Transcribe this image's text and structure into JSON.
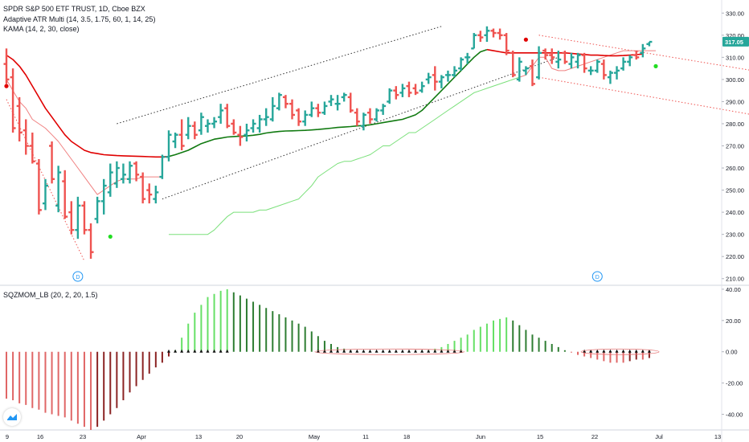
{
  "legend": {
    "title": "SPDR S&P 500 ETF TRUST, 1D, Cboe BZX",
    "ind1": "Adaptive ATR Multi (14, 3.5, 1.75, 60, 1, 14, 25)",
    "ind2": "KAMA (14, 2, 30, close)",
    "ind3": "SQZMOM_LB (20, 2, 20, 1.5)"
  },
  "price_badge": "317.05",
  "colors": {
    "up": "#26a69a",
    "down": "#ef5350",
    "kama_red": "#e00000",
    "kama_green": "#117a11",
    "trail_red": "#f08080",
    "trail_green": "#7be07b",
    "channel": "#333333",
    "mom_lime": "#66e066",
    "mom_green": "#2e7d32",
    "mom_red": "#e06666",
    "mom_maroon": "#8b2323"
  },
  "chart_data": [
    {
      "type": "candlestick",
      "title": "SPDR S&P 500 ETF TRUST, 1D, Cboe BZX",
      "x_ticks": [
        "9",
        "16",
        "23",
        "Apr",
        "13",
        "20",
        "May",
        "11",
        "18",
        "Jun",
        "15",
        "22",
        "Jul",
        "13"
      ],
      "y_ticks": [
        "330.00",
        "320.00",
        "310.00",
        "300.00",
        "290.00",
        "280.00",
        "270.00",
        "260.00",
        "250.00",
        "240.00",
        "230.00",
        "220.00",
        "210.00"
      ],
      "ylim": [
        207,
        333
      ],
      "last_price": 317.05,
      "markers": [
        "D",
        "D"
      ],
      "bars": [
        {
          "o": 307,
          "h": 314,
          "l": 298,
          "c": 300
        },
        {
          "o": 301,
          "h": 305,
          "l": 276,
          "c": 278
        },
        {
          "o": 288,
          "h": 292,
          "l": 272,
          "c": 276
        },
        {
          "o": 277,
          "h": 282,
          "l": 266,
          "c": 270
        },
        {
          "o": 270,
          "h": 276,
          "l": 262,
          "c": 263
        },
        {
          "o": 262,
          "h": 264,
          "l": 239,
          "c": 241
        },
        {
          "o": 244,
          "h": 255,
          "l": 241,
          "c": 252
        },
        {
          "o": 270,
          "h": 272,
          "l": 253,
          "c": 255
        },
        {
          "o": 243,
          "h": 261,
          "l": 240,
          "c": 258
        },
        {
          "o": 254,
          "h": 259,
          "l": 237,
          "c": 238
        },
        {
          "o": 240,
          "h": 245,
          "l": 230,
          "c": 232
        },
        {
          "o": 232,
          "h": 247,
          "l": 228,
          "c": 243
        },
        {
          "o": 243,
          "h": 245,
          "l": 230,
          "c": 232
        },
        {
          "o": 232,
          "h": 235,
          "l": 219,
          "c": 222
        },
        {
          "o": 237,
          "h": 247,
          "l": 235,
          "c": 245
        },
        {
          "o": 245,
          "h": 255,
          "l": 239,
          "c": 252
        },
        {
          "o": 249,
          "h": 262,
          "l": 247,
          "c": 258
        },
        {
          "o": 253,
          "h": 263,
          "l": 251,
          "c": 260
        },
        {
          "o": 255,
          "h": 262,
          "l": 253,
          "c": 257
        },
        {
          "o": 255,
          "h": 263,
          "l": 253,
          "c": 261
        },
        {
          "o": 262,
          "h": 263,
          "l": 254,
          "c": 257
        },
        {
          "o": 256,
          "h": 258,
          "l": 244,
          "c": 246
        },
        {
          "o": 250,
          "h": 253,
          "l": 244,
          "c": 248
        },
        {
          "o": 246,
          "h": 252,
          "l": 244,
          "c": 249
        },
        {
          "o": 256,
          "h": 266,
          "l": 255,
          "c": 265
        },
        {
          "o": 265,
          "h": 277,
          "l": 263,
          "c": 275
        },
        {
          "o": 272,
          "h": 276,
          "l": 269,
          "c": 275
        },
        {
          "o": 275,
          "h": 282,
          "l": 268,
          "c": 270
        },
        {
          "o": 275,
          "h": 283,
          "l": 273,
          "c": 279
        },
        {
          "o": 279,
          "h": 281,
          "l": 273,
          "c": 275
        },
        {
          "o": 277,
          "h": 285,
          "l": 275,
          "c": 283
        },
        {
          "o": 279,
          "h": 282,
          "l": 276,
          "c": 280
        },
        {
          "o": 280,
          "h": 283,
          "l": 278,
          "c": 281
        },
        {
          "o": 283,
          "h": 289,
          "l": 280,
          "c": 286
        },
        {
          "o": 287,
          "h": 289,
          "l": 278,
          "c": 279
        },
        {
          "o": 280,
          "h": 282,
          "l": 275,
          "c": 276
        },
        {
          "o": 275,
          "h": 279,
          "l": 270,
          "c": 274
        },
        {
          "o": 275,
          "h": 280,
          "l": 272,
          "c": 277
        },
        {
          "o": 278,
          "h": 282,
          "l": 276,
          "c": 280
        },
        {
          "o": 278,
          "h": 284,
          "l": 276,
          "c": 282
        },
        {
          "o": 282,
          "h": 287,
          "l": 279,
          "c": 283
        },
        {
          "o": 282,
          "h": 292,
          "l": 281,
          "c": 288
        },
        {
          "o": 287,
          "h": 294,
          "l": 286,
          "c": 293
        },
        {
          "o": 292,
          "h": 293,
          "l": 287,
          "c": 289
        },
        {
          "o": 289,
          "h": 291,
          "l": 282,
          "c": 284
        },
        {
          "o": 286,
          "h": 287,
          "l": 279,
          "c": 281
        },
        {
          "o": 281,
          "h": 286,
          "l": 279,
          "c": 284
        },
        {
          "o": 284,
          "h": 290,
          "l": 283,
          "c": 287
        },
        {
          "o": 287,
          "h": 289,
          "l": 283,
          "c": 285
        },
        {
          "o": 285,
          "h": 290,
          "l": 284,
          "c": 288
        },
        {
          "o": 290,
          "h": 293,
          "l": 288,
          "c": 291
        },
        {
          "o": 289,
          "h": 293,
          "l": 286,
          "c": 289
        },
        {
          "o": 292,
          "h": 294,
          "l": 290,
          "c": 293
        },
        {
          "o": 292,
          "h": 294,
          "l": 285,
          "c": 286
        },
        {
          "o": 285,
          "h": 287,
          "l": 279,
          "c": 281
        },
        {
          "o": 279,
          "h": 285,
          "l": 277,
          "c": 284
        },
        {
          "o": 285,
          "h": 287,
          "l": 280,
          "c": 282
        },
        {
          "o": 282,
          "h": 287,
          "l": 281,
          "c": 286
        },
        {
          "o": 286,
          "h": 289,
          "l": 284,
          "c": 288
        },
        {
          "o": 290,
          "h": 296,
          "l": 289,
          "c": 295
        },
        {
          "o": 295,
          "h": 297,
          "l": 291,
          "c": 293
        },
        {
          "o": 294,
          "h": 298,
          "l": 292,
          "c": 296
        },
        {
          "o": 297,
          "h": 299,
          "l": 292,
          "c": 294
        },
        {
          "o": 296,
          "h": 298,
          "l": 293,
          "c": 294
        },
        {
          "o": 295,
          "h": 299,
          "l": 294,
          "c": 297
        },
        {
          "o": 300,
          "h": 303,
          "l": 298,
          "c": 301
        },
        {
          "o": 302,
          "h": 306,
          "l": 295,
          "c": 299
        },
        {
          "o": 299,
          "h": 302,
          "l": 296,
          "c": 301
        },
        {
          "o": 302,
          "h": 304,
          "l": 299,
          "c": 302
        },
        {
          "o": 302,
          "h": 306,
          "l": 301,
          "c": 304
        },
        {
          "o": 305,
          "h": 310,
          "l": 304,
          "c": 309
        },
        {
          "o": 310,
          "h": 312,
          "l": 307,
          "c": 310
        },
        {
          "o": 314,
          "h": 321,
          "l": 314,
          "c": 320
        },
        {
          "o": 320,
          "h": 322,
          "l": 317,
          "c": 319
        },
        {
          "o": 320,
          "h": 324,
          "l": 317,
          "c": 322
        },
        {
          "o": 322,
          "h": 323,
          "l": 319,
          "c": 321
        },
        {
          "o": 321,
          "h": 323,
          "l": 318,
          "c": 320
        },
        {
          "o": 320,
          "h": 321,
          "l": 311,
          "c": 313
        },
        {
          "o": 312,
          "h": 313,
          "l": 301,
          "c": 302
        },
        {
          "o": 300,
          "h": 310,
          "l": 299,
          "c": 308
        },
        {
          "o": 304,
          "h": 306,
          "l": 302,
          "c": 305
        },
        {
          "o": 306,
          "h": 309,
          "l": 297,
          "c": 298
        },
        {
          "o": 301,
          "h": 315,
          "l": 300,
          "c": 312
        },
        {
          "o": 313,
          "h": 314,
          "l": 309,
          "c": 311
        },
        {
          "o": 311,
          "h": 314,
          "l": 307,
          "c": 310
        },
        {
          "o": 308,
          "h": 313,
          "l": 305,
          "c": 309
        },
        {
          "o": 312,
          "h": 313,
          "l": 307,
          "c": 308
        },
        {
          "o": 307,
          "h": 312,
          "l": 305,
          "c": 310
        },
        {
          "o": 308,
          "h": 312,
          "l": 305,
          "c": 311
        },
        {
          "o": 311,
          "h": 312,
          "l": 303,
          "c": 305
        },
        {
          "o": 304,
          "h": 306,
          "l": 302,
          "c": 304
        },
        {
          "o": 304,
          "h": 309,
          "l": 303,
          "c": 308
        },
        {
          "o": 307,
          "h": 309,
          "l": 300,
          "c": 302
        },
        {
          "o": 301,
          "h": 304,
          "l": 298,
          "c": 303
        },
        {
          "o": 303,
          "h": 306,
          "l": 300,
          "c": 304
        },
        {
          "o": 305,
          "h": 310,
          "l": 304,
          "c": 308
        },
        {
          "o": 308,
          "h": 311,
          "l": 306,
          "c": 310
        },
        {
          "o": 311,
          "h": 313,
          "l": 309,
          "c": 310
        },
        {
          "o": 312,
          "h": 316,
          "l": 310,
          "c": 314
        },
        {
          "o": 316,
          "h": 317,
          "l": 315,
          "c": 317
        }
      ],
      "kama": [
        311,
        309,
        306,
        302,
        297,
        292,
        287,
        283,
        279,
        275,
        272,
        270,
        268,
        267,
        266.5,
        266,
        265.8,
        265.6,
        265.5,
        265.4,
        265.3,
        265.2,
        265.1,
        265.0,
        265.0,
        265.2,
        266.0,
        267.0,
        268.0,
        269.5,
        271,
        272,
        273,
        273.5,
        274,
        274.2,
        274.4,
        274.5,
        274.8,
        275.2,
        275.8,
        276.2,
        276.5,
        276.7,
        276.8,
        276.9,
        277.0,
        277.2,
        277.4,
        277.7,
        278.0,
        278.3,
        278.5,
        278.7,
        279.0,
        279.2,
        279.5,
        280.0,
        280.5,
        281.0,
        281.5,
        282.0,
        283.0,
        284.0,
        286.0,
        289.0,
        292.0,
        295.0,
        298.0,
        301.0,
        304.0,
        307.0,
        310.0,
        312.5,
        313.5,
        313.0,
        312.5,
        312.0,
        312.0,
        312.0,
        312.0,
        312.0,
        312.0,
        312.0,
        312.0,
        312.0,
        312.0,
        311.8,
        311.5,
        311.3,
        311.0,
        311.0,
        310.8,
        310.7,
        310.7,
        310.8,
        311.0,
        311.2,
        311.5
      ],
      "kama_color_switch_index": 25,
      "trail": [
        300,
        295,
        290,
        287,
        282,
        280,
        278,
        275,
        272,
        268,
        264,
        260,
        256,
        252,
        248,
        250,
        252,
        254,
        255,
        255,
        255,
        256,
        256,
        256,
        256,
        230,
        230,
        230,
        230,
        230,
        230,
        230,
        232,
        235,
        238,
        240,
        240,
        240,
        240,
        241,
        241,
        242,
        243,
        244,
        245,
        246,
        249,
        252,
        256,
        258,
        260,
        262,
        263,
        263,
        264,
        265,
        266,
        268,
        270,
        270,
        272,
        274,
        276,
        276,
        278,
        280,
        282,
        284,
        286,
        288,
        290,
        292,
        294,
        295,
        296,
        297,
        298,
        299,
        300,
        301,
        302,
        306,
        310,
        310,
        305,
        304,
        304,
        305,
        306,
        307,
        308,
        309,
        310,
        311,
        312,
        313,
        313,
        313,
        313,
        313,
        313
      ],
      "trail_red_until": 24,
      "trail_red_from": 79,
      "channel_up": {
        "upper": [
          [
            17,
            280
          ],
          [
            67,
            324
          ]
        ],
        "lower": [
          [
            24,
            246
          ],
          [
            85,
            310
          ]
        ]
      },
      "channel_down": {
        "upper": [
          [
            82,
            320
          ],
          [
            117,
            303
          ]
        ],
        "lower": [
          [
            82,
            301
          ],
          [
            117,
            283
          ]
        ]
      },
      "crash_line": [
        [
          0,
          291
        ],
        [
          12,
          218
        ]
      ],
      "dots": [
        {
          "i": 0,
          "v": 297,
          "color": "red"
        },
        {
          "i": 16,
          "v": 229,
          "color": "green"
        },
        {
          "i": 80,
          "v": 318,
          "color": "red"
        },
        {
          "i": 100,
          "v": 306,
          "color": "green"
        }
      ]
    },
    {
      "type": "bar",
      "title": "SQZMOM_LB (20, 2, 20, 1.5)",
      "y_ticks": [
        "40.00",
        "20.00",
        "0.00",
        "-20.00",
        "-40.00"
      ],
      "ylim": [
        -50,
        42
      ],
      "values": [
        -30,
        -31,
        -33,
        -34,
        -36,
        -37,
        -39,
        -40,
        -41,
        -42,
        -44,
        -46,
        -48,
        -50,
        -48,
        -44,
        -40,
        -36,
        -31,
        -26,
        -22,
        -18,
        -14,
        -10,
        -7,
        -3,
        1,
        9,
        18,
        25,
        30,
        35,
        37,
        39,
        40,
        38,
        36,
        34,
        32,
        30,
        28,
        26,
        24,
        22,
        20,
        18,
        16,
        13,
        10,
        7,
        5,
        3,
        2,
        1,
        0.5,
        0.3,
        0.2,
        0.1,
        0.1,
        0.1,
        0.2,
        0.3,
        0.4,
        0.5,
        0.8,
        1,
        2,
        3,
        5,
        7,
        9,
        11,
        14,
        16,
        18,
        20,
        21,
        22,
        20,
        17,
        14,
        11,
        9,
        7,
        5,
        3,
        1,
        -0.5,
        -2,
        -3,
        -4,
        -5,
        -6,
        -7,
        -7,
        -7,
        -6,
        -5,
        -5,
        -4
      ],
      "squeeze_on_ranges": [
        [
          25,
          34
        ],
        [
          48,
          70
        ],
        [
          89,
          100
        ]
      ]
    }
  ]
}
